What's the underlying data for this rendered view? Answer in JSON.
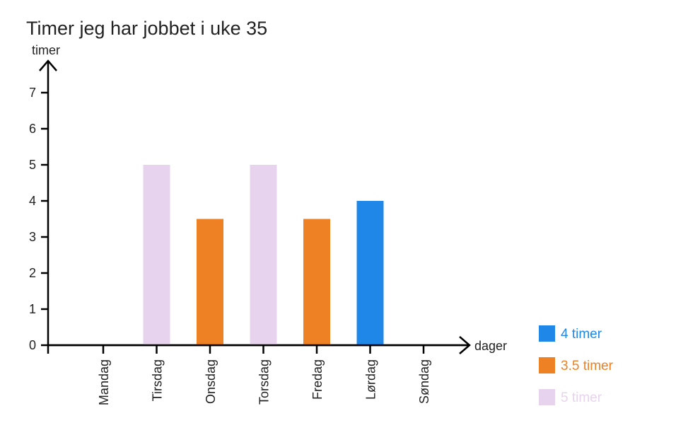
{
  "chart_data": {
    "type": "bar",
    "title": "Timer jeg har jobbet i uke 35",
    "xlabel": "dager",
    "ylabel": "timer",
    "categories": [
      "Mandag",
      "Tirsdag",
      "Onsdag",
      "Torsdag",
      "Fredag",
      "Lørdag",
      "Søndag"
    ],
    "values": [
      0,
      5,
      3.5,
      5,
      3.5,
      4,
      0
    ],
    "ylim": [
      0,
      7
    ],
    "yticks": [
      0,
      1,
      2,
      3,
      4,
      5,
      6,
      7
    ],
    "grid": false,
    "legend_position": "bottom-right",
    "legend": [
      {
        "label": "4 timer",
        "color": "#1f87e8",
        "value": 4
      },
      {
        "label": "3.5 timer",
        "color": "#ee8123",
        "value": 3.5
      },
      {
        "label": "5 timer",
        "color": "#e8d3ee",
        "value": 5
      }
    ]
  }
}
